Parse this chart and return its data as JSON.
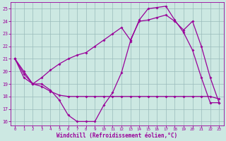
{
  "bg_color": "#cce8e2",
  "line_color": "#990099",
  "grid_color": "#99bbbb",
  "xlabel": "Windchill (Refroidissement éolien,°C)",
  "xlim_min": -0.5,
  "xlim_max": 23.5,
  "ylim_min": 15.7,
  "ylim_max": 25.5,
  "yticks": [
    16,
    17,
    18,
    19,
    20,
    21,
    22,
    23,
    24,
    25
  ],
  "xticks": [
    0,
    1,
    2,
    3,
    4,
    5,
    6,
    7,
    8,
    9,
    10,
    11,
    12,
    13,
    14,
    15,
    16,
    17,
    18,
    19,
    20,
    21,
    22,
    23
  ],
  "line1_x": [
    0,
    1,
    2,
    3,
    4,
    5,
    6,
    7,
    8,
    9,
    10,
    11,
    12,
    13,
    14,
    15,
    16,
    17,
    18,
    19,
    20,
    21,
    22,
    23
  ],
  "line1_y": [
    21,
    19.8,
    19,
    19,
    18.5,
    17.7,
    16.5,
    16.0,
    16.0,
    16.0,
    17.3,
    18.3,
    19.9,
    22.4,
    24.1,
    25.0,
    25.1,
    25.2,
    24.1,
    23.1,
    21.7,
    19.5,
    17.5,
    17.5
  ],
  "line2_x": [
    0,
    1,
    2,
    3,
    4,
    5,
    6,
    7,
    8,
    9,
    10,
    11,
    12,
    13,
    14,
    15,
    16,
    17,
    18,
    19,
    20,
    21,
    22,
    23
  ],
  "line2_y": [
    21,
    20.0,
    19.0,
    18.8,
    18.4,
    18.1,
    18.0,
    18.0,
    18.0,
    18.0,
    18.0,
    18.0,
    18.0,
    18.0,
    18.0,
    18.0,
    18.0,
    18.0,
    18.0,
    18.0,
    18.0,
    18.0,
    18.0,
    17.8
  ],
  "line3_x": [
    0,
    1,
    2,
    3,
    4,
    5,
    6,
    7,
    8,
    9,
    10,
    11,
    12,
    13,
    14,
    15,
    16,
    17,
    18,
    19,
    20,
    21,
    22,
    23
  ],
  "line3_y": [
    21,
    19.5,
    19.0,
    19.5,
    20.1,
    20.6,
    21.0,
    21.3,
    21.5,
    22.0,
    22.5,
    23.0,
    23.5,
    22.5,
    24.0,
    24.1,
    24.3,
    24.5,
    24.0,
    23.3,
    24.0,
    22.0,
    19.5,
    17.5
  ]
}
